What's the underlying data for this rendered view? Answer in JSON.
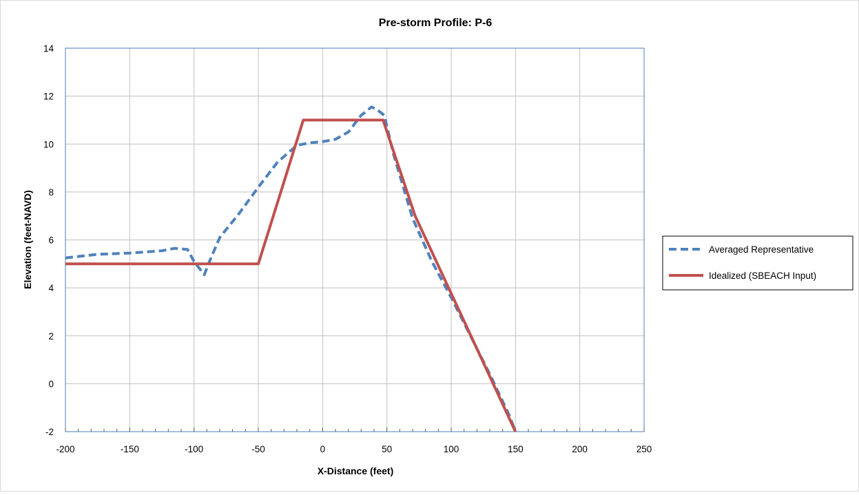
{
  "chart_data": {
    "type": "line",
    "title": "Pre-storm Profile: P-6",
    "xlabel": "X-Distance (feet)",
    "ylabel": "Elevation (feet-NAVD)",
    "xlim": [
      -200,
      250
    ],
    "ylim": [
      -2,
      14
    ],
    "xticks": [
      -200,
      -150,
      -100,
      -50,
      0,
      50,
      100,
      150,
      200,
      250
    ],
    "yticks": [
      -2,
      0,
      2,
      4,
      6,
      8,
      10,
      12,
      14
    ],
    "grid": true,
    "legend_position": "right",
    "series": [
      {
        "name": "Averaged Representative",
        "color": "#4F81BD",
        "style": "dashed",
        "x": [
          -200,
          -175,
          -150,
          -125,
          -115,
          -105,
          -100,
          -92,
          -88,
          -80,
          -65,
          -50,
          -35,
          -20,
          -15,
          -10,
          0,
          10,
          20,
          30,
          38,
          42,
          48,
          55,
          70,
          85,
          100,
          115,
          130,
          145,
          150
        ],
        "y": [
          5.25,
          5.4,
          5.45,
          5.55,
          5.65,
          5.6,
          5.1,
          4.55,
          5.1,
          6.1,
          7.1,
          8.2,
          9.25,
          9.95,
          10.0,
          10.05,
          10.1,
          10.2,
          10.5,
          11.2,
          11.55,
          11.45,
          11.2,
          9.6,
          6.9,
          5.1,
          3.6,
          2.0,
          0.4,
          -1.3,
          -2.0
        ]
      },
      {
        "name": "Idealized (SBEACH Input)",
        "color": "#C0504D",
        "style": "solid",
        "x": [
          -200,
          -50,
          -15,
          47,
          72,
          150
        ],
        "y": [
          5.0,
          5.0,
          11.0,
          11.0,
          7.0,
          -2.0
        ]
      }
    ]
  }
}
